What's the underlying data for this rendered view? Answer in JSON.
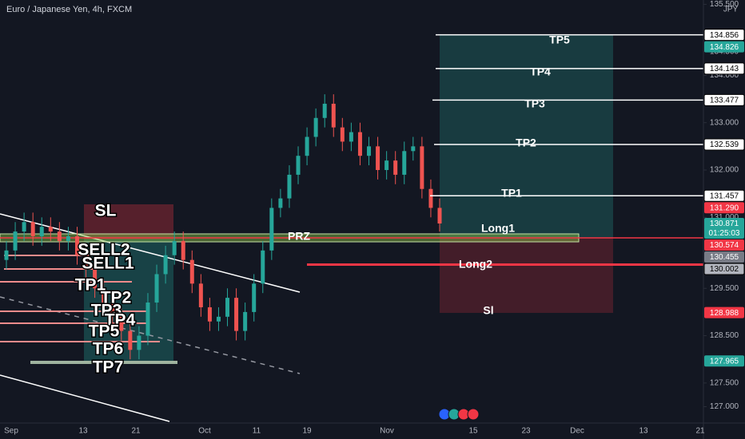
{
  "header": {
    "title": "Euro / Japanese Yen, 4h, FXCM"
  },
  "price_axis": {
    "currency": "JPY",
    "ticks": [
      {
        "value": 135.5,
        "label": "135.500"
      },
      {
        "value": 134.5,
        "label": "134.500"
      },
      {
        "value": 134,
        "label": "134.000"
      },
      {
        "value": 133,
        "label": "133.000"
      },
      {
        "value": 132,
        "label": "132.000"
      },
      {
        "value": 131,
        "label": "131.000"
      },
      {
        "value": 129.5,
        "label": "129.500"
      },
      {
        "value": 128.5,
        "label": "128.500"
      },
      {
        "value": 127.5,
        "label": "127.500"
      },
      {
        "value": 127,
        "label": "127.000"
      }
    ]
  },
  "time_axis": {
    "labels": [
      "Sep",
      "13",
      "21",
      "Oct",
      "11",
      "19",
      "Nov",
      "15",
      "23",
      "Dec",
      "13",
      "21"
    ]
  },
  "price_tags": [
    {
      "value": 134.856,
      "label": "134.856",
      "color": "#ffffff"
    },
    {
      "value": 134.826,
      "label": "134.826",
      "color": "#26a69a"
    },
    {
      "value": 134.143,
      "label": "134.143",
      "color": "#ffffff"
    },
    {
      "value": 133.477,
      "label": "133.477",
      "color": "#ffffff"
    },
    {
      "value": 132.539,
      "label": "132.539",
      "color": "#ffffff"
    },
    {
      "value": 131.457,
      "label": "131.457",
      "color": "#ffffff"
    },
    {
      "value": 131.29,
      "label": "131.290",
      "color": "#f23645"
    },
    {
      "value": 130.871,
      "label": "130.871",
      "sublabel": "01:25:03",
      "color": "#26a69a"
    },
    {
      "value": 130.574,
      "label": "130.574",
      "color": "#f23645"
    },
    {
      "value": 130.455,
      "label": "130.455",
      "color": "#787b86"
    },
    {
      "value": 130.002,
      "label": "130.002",
      "color": "#b2b5be"
    },
    {
      "value": 128.988,
      "label": "128.988",
      "color": "#f23645"
    },
    {
      "value": 127.965,
      "label": "127.965",
      "color": "#26a69a"
    }
  ],
  "candles": {
    "open": [
      130.1,
      130.3,
      130.7,
      130.9,
      130.6,
      130.8,
      130.7,
      130.5,
      130.6,
      130.2,
      129.9,
      129.5,
      129.2,
      128.9,
      128.6,
      128.2,
      128.5,
      129.2,
      129.8,
      130.2,
      130.5,
      130.1,
      129.6,
      129.1,
      128.8,
      128.9,
      129.3,
      128.6,
      129.0,
      129.6,
      130.3,
      131.2,
      131.4,
      131.9,
      132.3,
      132.7,
      133.1,
      133.4,
      132.9,
      132.6,
      132.8,
      132.3,
      132.5,
      132.0,
      132.2,
      131.9,
      132.4,
      132.5,
      131.6,
      131.2
    ],
    "high": [
      130.5,
      130.9,
      131.1,
      131.1,
      131.0,
      131.0,
      130.9,
      130.8,
      130.8,
      130.4,
      130.1,
      129.7,
      129.4,
      129.1,
      128.8,
      128.7,
      129.4,
      130.0,
      130.4,
      130.7,
      130.7,
      130.3,
      129.8,
      129.3,
      129.1,
      129.5,
      129.5,
      129.2,
      129.8,
      130.5,
      131.4,
      131.6,
      132.1,
      132.5,
      132.9,
      133.3,
      133.6,
      133.6,
      133.1,
      133.0,
      133.0,
      132.7,
      132.7,
      132.4,
      132.4,
      132.6,
      132.7,
      132.7,
      131.8,
      131.4
    ],
    "low": [
      129.9,
      130.1,
      130.5,
      130.4,
      130.4,
      130.5,
      130.3,
      130.3,
      130.0,
      129.7,
      129.3,
      129.0,
      128.7,
      128.4,
      128.0,
      128.0,
      128.3,
      129.0,
      129.6,
      130.0,
      129.9,
      129.4,
      128.9,
      128.6,
      128.6,
      128.7,
      128.4,
      128.4,
      128.8,
      129.4,
      130.1,
      131.0,
      131.2,
      131.7,
      132.1,
      132.5,
      132.9,
      132.7,
      132.4,
      132.4,
      132.1,
      132.1,
      131.8,
      131.8,
      131.7,
      131.7,
      132.2,
      131.4,
      131.0,
      130.7
    ],
    "close": [
      130.3,
      130.7,
      130.9,
      130.6,
      130.8,
      130.7,
      130.5,
      130.6,
      130.2,
      129.9,
      129.5,
      129.2,
      128.9,
      128.6,
      128.2,
      128.5,
      129.2,
      129.8,
      130.2,
      130.5,
      130.1,
      129.6,
      129.1,
      128.8,
      128.9,
      129.3,
      128.6,
      129.0,
      129.6,
      130.3,
      131.2,
      131.4,
      131.9,
      132.3,
      132.7,
      133.1,
      133.4,
      132.9,
      132.6,
      132.8,
      132.3,
      132.5,
      132.0,
      132.2,
      131.9,
      132.4,
      132.5,
      131.6,
      131.2,
      130.87
    ]
  },
  "drawings": {
    "left_labels": [
      "SL",
      "SELL2",
      "SELL1",
      "TP1",
      "TP2",
      "TP3",
      "TP4",
      "TP5",
      "TP6",
      "TP7"
    ],
    "right_labels": [
      "TP5",
      "TP4",
      "TP3",
      "TP2",
      "TP1",
      "Long1",
      "PRZ",
      "Long2",
      "Sl"
    ]
  }
}
